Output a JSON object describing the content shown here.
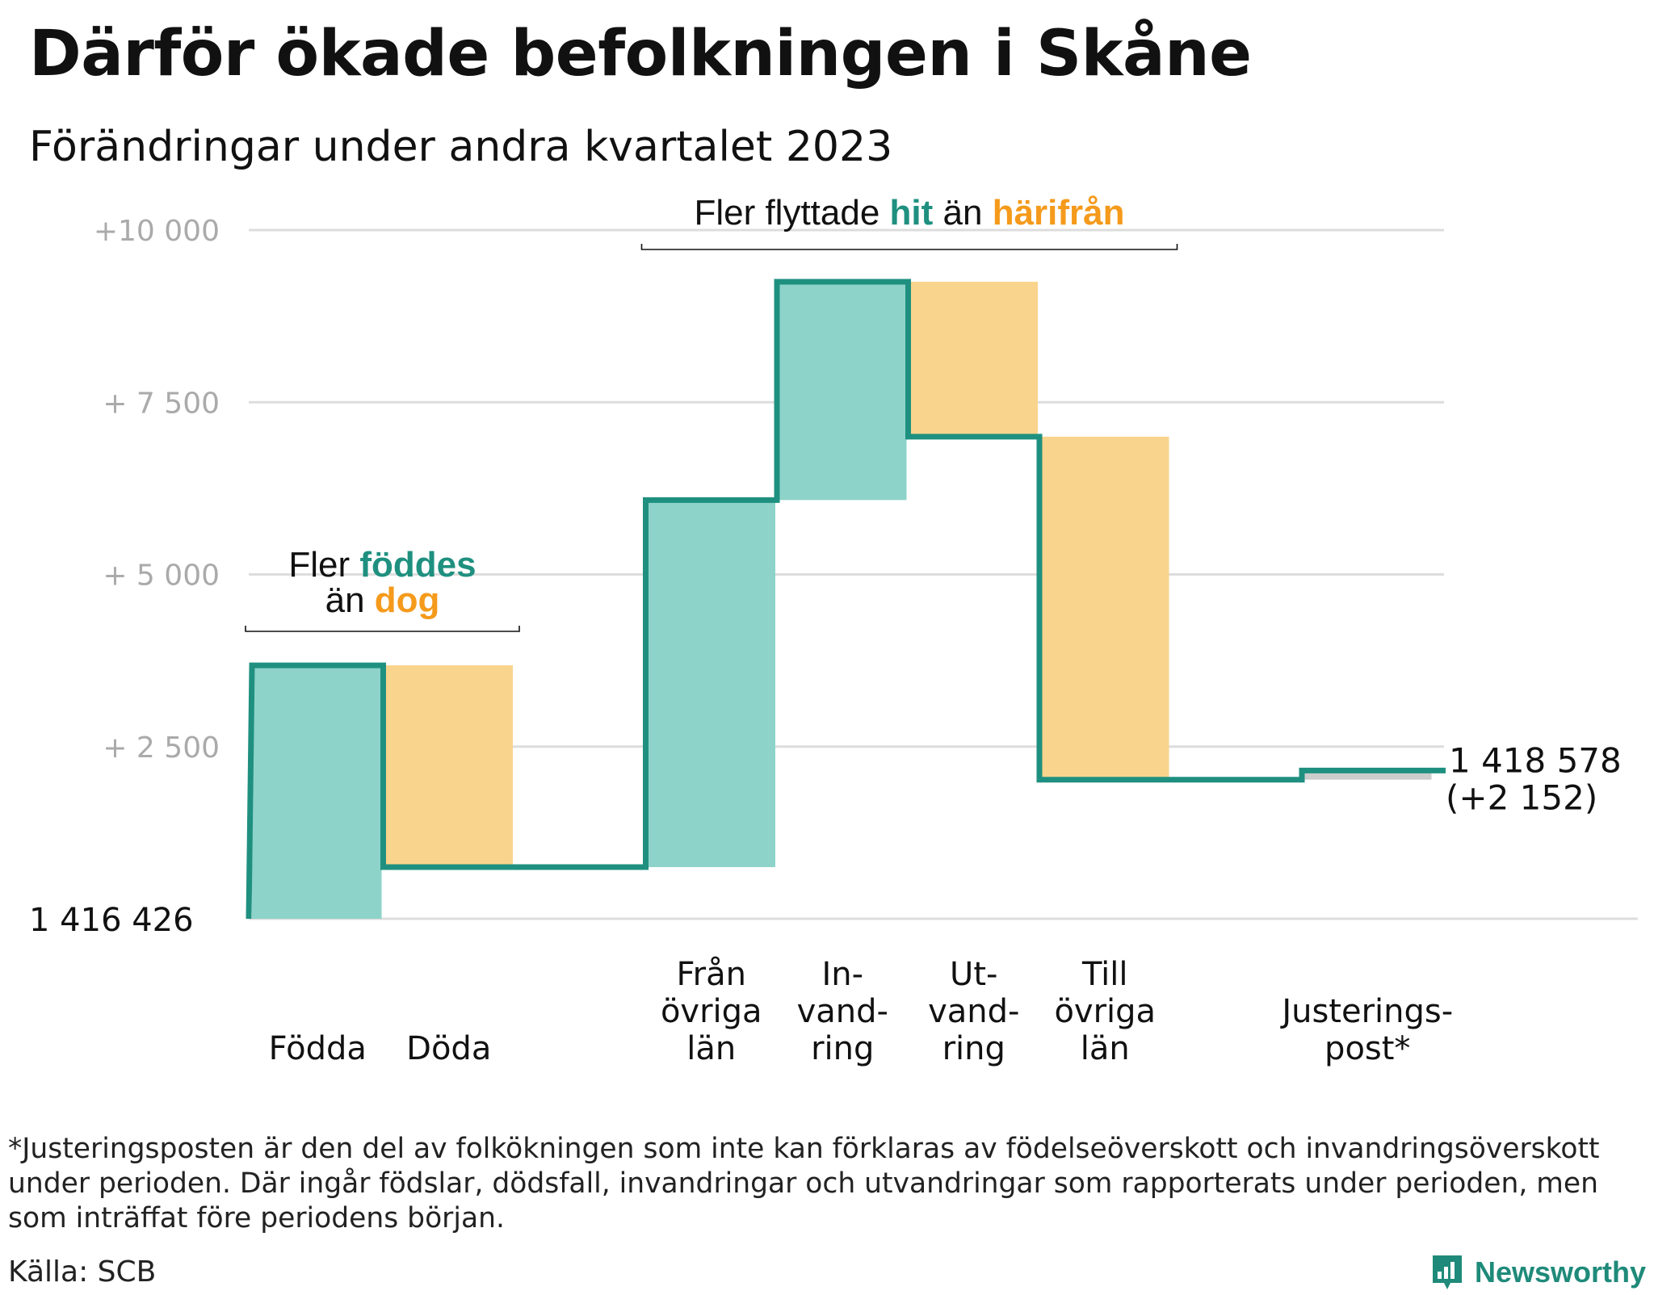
{
  "title": "Därför ökade befolkningen i Skåne",
  "subtitle": "Förändringar under andra kvartalet 2023",
  "colors": {
    "increase_fill": "#8dd3c9",
    "decrease_fill": "#f9d48c",
    "adjustment_fill": "#cccccc",
    "line": "#1f9080",
    "teal_text": "#1f9080",
    "orange_text": "#f59a1b",
    "grid": "#dddddd",
    "axis_text": "#aaaaaa"
  },
  "chart_data": {
    "type": "waterfall",
    "start_label": "1  416   426",
    "start_value": 0,
    "ylim": [
      0,
      10000
    ],
    "y_ticks": [
      {
        "value": 2500,
        "label": "+  2  500"
      },
      {
        "value": 5000,
        "label": "+  5  000"
      },
      {
        "value": 7500,
        "label": "+  7  500"
      },
      {
        "value": 10000,
        "label": "+10   000"
      }
    ],
    "steps": [
      {
        "label_lines": [
          "Födda"
        ],
        "delta": 3680,
        "kind": "increase"
      },
      {
        "label_lines": [
          "Döda"
        ],
        "delta": -2930,
        "kind": "decrease"
      },
      {
        "label_lines": [],
        "delta": 0,
        "kind": "gap"
      },
      {
        "label_lines": [
          "Från",
          "övriga",
          "län"
        ],
        "delta": 5330,
        "kind": "increase"
      },
      {
        "label_lines": [
          "In-",
          "vand-",
          "ring"
        ],
        "delta": 3170,
        "kind": "increase"
      },
      {
        "label_lines": [
          "Ut-",
          "vand-",
          "ring"
        ],
        "delta": -2250,
        "kind": "decrease"
      },
      {
        "label_lines": [
          "Till",
          "övriga",
          "län"
        ],
        "delta": -4980,
        "kind": "decrease"
      },
      {
        "label_lines": [],
        "delta": 0,
        "kind": "gap"
      },
      {
        "label_lines": [
          "Justerings-",
          "post*"
        ],
        "delta": 132,
        "kind": "adjustment"
      }
    ],
    "end_value_label": "1 418 578",
    "end_change_label": "(+2 152)",
    "annotations": [
      {
        "parts": [
          {
            "text": "Fler ",
            "style": "plain"
          },
          {
            "text": "föddes",
            "style": "teal"
          }
        ],
        "parts2": [
          {
            "text": "än ",
            "style": "plain"
          },
          {
            "text": "dog",
            "style": "orange"
          }
        ],
        "from_step": 0,
        "to_step": 1
      },
      {
        "parts": [
          {
            "text": "Fler flyttade ",
            "style": "plain"
          },
          {
            "text": "hit",
            "style": "teal"
          },
          {
            "text": "  än ",
            "style": "plain"
          },
          {
            "text": "härifrån",
            "style": "orange"
          }
        ],
        "from_step": 3,
        "to_step": 6
      }
    ]
  },
  "footnote": "*Justeringsposten är den del av folkökningen som inte kan förklaras av födelseöverskott och invandringsöverskott under perioden. Där ingår födslar, dödsfall, invandringar och utvandringar som rapporterats under perioden, men som inträffat före periodens början.",
  "source": "Källa: SCB",
  "brand": "Newsworthy"
}
